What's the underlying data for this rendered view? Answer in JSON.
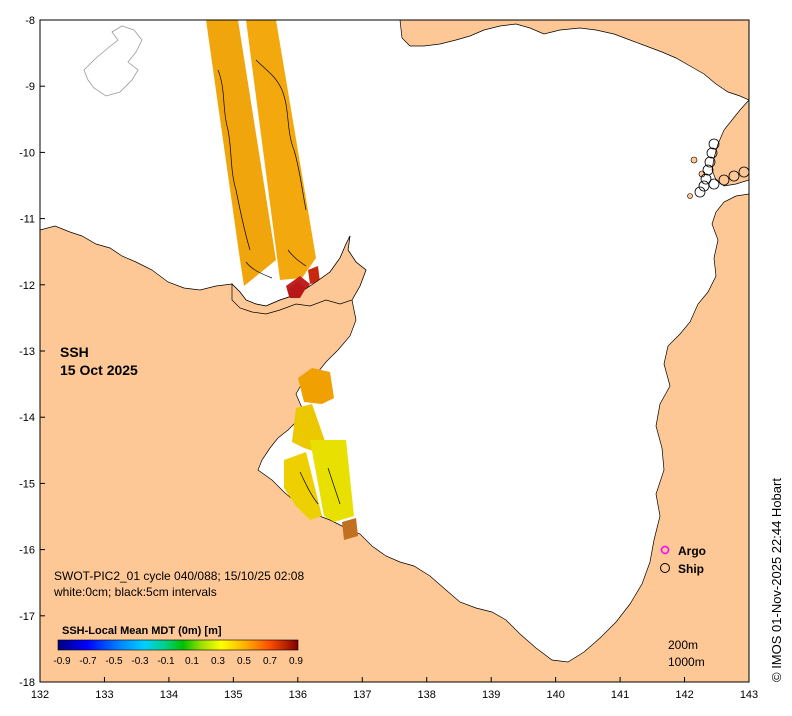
{
  "map": {
    "title_line1": "SSH",
    "title_line2": "15 Oct 2025",
    "info_line1": "SWOT-PIC2_01 cycle 040/088; 15/10/25 02:08",
    "info_line2": "white:0cm; black:5cm intervals",
    "credit": "© IMOS 01-Nov-2025 22:44 Hobart",
    "x_ticks": [
      "132",
      "133",
      "134",
      "135",
      "136",
      "137",
      "138",
      "139",
      "140",
      "141",
      "142",
      "143"
    ],
    "y_ticks": [
      "-8",
      "-9",
      "-10",
      "-11",
      "-12",
      "-13",
      "-14",
      "-15",
      "-16",
      "-17",
      "-18"
    ],
    "lon_range": [
      132,
      143
    ],
    "lat_range": [
      -18,
      -8
    ]
  },
  "colorbar": {
    "title": "SSH-Local Mean MDT (0m) [m]",
    "ticks": [
      "-0.9",
      "-0.7",
      "-0.5",
      "-0.3",
      "-0.1",
      "0.1",
      "0.3",
      "0.5",
      "0.7",
      "0.9"
    ],
    "colors": [
      "#00007f",
      "#0000ff",
      "#007fff",
      "#00c8ff",
      "#00e0a0",
      "#00c800",
      "#a0e000",
      "#ffff00",
      "#ffb000",
      "#ff6000",
      "#d02000",
      "#7f0000"
    ]
  },
  "legend": {
    "argo_label": "Argo",
    "ship_label": "Ship",
    "argo_color": "#ff00ff",
    "ship_color": "#000000"
  },
  "depth": {
    "label_200": "200m",
    "label_1000": "1000m"
  },
  "colors": {
    "land": "#fdc896",
    "sea": "#ffffff",
    "swath_orange": "#f0a000",
    "swath_yellow": "#e8dc00"
  }
}
